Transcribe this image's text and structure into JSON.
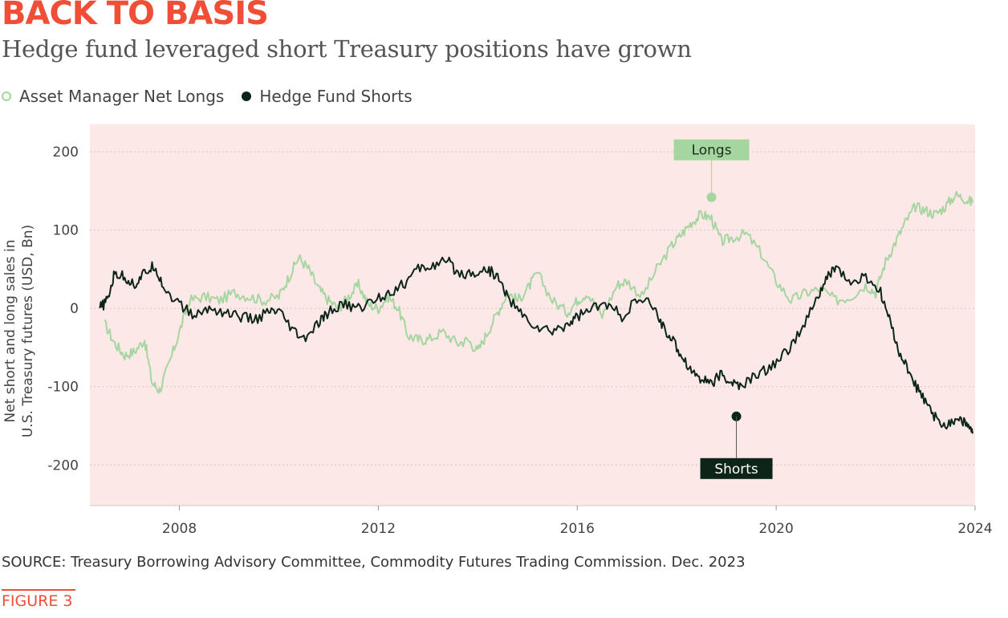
{
  "header": {
    "title": "BACK TO BASIS",
    "subtitle": "Hedge fund leveraged short Treasury positions have grown"
  },
  "footer": {
    "source": "SOURCE: Treasury Borrowing Advisory Committee, Commodity Futures Trading Commission. Dec. 2023",
    "figure_label": "FIGURE 3"
  },
  "colors": {
    "title": "#f04e37",
    "plot_background": "#fde8e8",
    "longs": "#a5d6a0",
    "shorts": "#0d2518"
  },
  "chart_data": {
    "type": "line",
    "title": "BACK TO BASIS",
    "subtitle": "Hedge fund leveraged short Treasury positions have grown",
    "ylabel": "Net short and long sales in U.S. Treasury futures (USD, Bn)",
    "xlabel": "",
    "xlim": [
      2006.2,
      2024.0
    ],
    "ylim": [
      -252,
      235
    ],
    "xticks": [
      2008,
      2012,
      2016,
      2020,
      2024
    ],
    "yticks": [
      200,
      100,
      0,
      -100,
      -200
    ],
    "xtick_labels": [
      "2008",
      "2012",
      "2016",
      "2020",
      "2024"
    ],
    "ytick_labels": [
      "200",
      "100",
      "0",
      "-100",
      "-200"
    ],
    "grid": "horizontal dotted",
    "legend_position": "top-left",
    "series": [
      {
        "name": "Asset Manager Net Longs",
        "style": "hollow-circle",
        "x": [
          2006.5,
          2006.7,
          2006.9,
          2007.1,
          2007.3,
          2007.45,
          2007.6,
          2007.8,
          2008.0,
          2008.2,
          2008.5,
          2008.8,
          2009.1,
          2009.4,
          2009.7,
          2010.0,
          2010.2,
          2010.4,
          2010.6,
          2010.8,
          2011.0,
          2011.2,
          2011.4,
          2011.6,
          2011.8,
          2012.0,
          2012.2,
          2012.4,
          2012.6,
          2012.8,
          2013.0,
          2013.3,
          2013.6,
          2013.8,
          2014.0,
          2014.2,
          2014.4,
          2014.6,
          2014.8,
          2015.0,
          2015.2,
          2015.5,
          2015.8,
          2016.0,
          2016.2,
          2016.5,
          2016.8,
          2017.0,
          2017.3,
          2017.6,
          2017.9,
          2018.1,
          2018.3,
          2018.5,
          2018.7,
          2018.9,
          2019.1,
          2019.4,
          2019.7,
          2020.0,
          2020.3,
          2020.6,
          2020.9,
          2021.2,
          2021.5,
          2021.8,
          2022.0,
          2022.2,
          2022.4,
          2022.6,
          2022.8,
          2023.0,
          2023.2,
          2023.4,
          2023.6,
          2023.8,
          2023.95
        ],
        "values": [
          -20,
          -45,
          -60,
          -55,
          -40,
          -95,
          -105,
          -70,
          -30,
          10,
          15,
          10,
          20,
          15,
          10,
          15,
          40,
          65,
          50,
          25,
          10,
          0,
          15,
          30,
          5,
          0,
          15,
          0,
          -35,
          -40,
          -40,
          -30,
          -45,
          -40,
          -55,
          -30,
          -5,
          20,
          10,
          25,
          45,
          10,
          -5,
          10,
          20,
          -10,
          30,
          35,
          15,
          50,
          80,
          95,
          110,
          120,
          115,
          85,
          90,
          95,
          70,
          35,
          10,
          20,
          25,
          10,
          15,
          30,
          20,
          60,
          85,
          110,
          130,
          125,
          120,
          130,
          145,
          140,
          135
        ]
      },
      {
        "name": "Hedge Fund Shorts",
        "style": "solid-circle",
        "x": [
          2006.4,
          2006.55,
          2006.7,
          2006.9,
          2007.1,
          2007.3,
          2007.5,
          2007.7,
          2008.0,
          2008.3,
          2008.6,
          2008.9,
          2009.2,
          2009.5,
          2009.8,
          2010.0,
          2010.3,
          2010.5,
          2010.8,
          2011.0,
          2011.3,
          2011.6,
          2011.9,
          2012.2,
          2012.5,
          2012.8,
          2013.1,
          2013.4,
          2013.6,
          2013.9,
          2014.2,
          2014.4,
          2014.6,
          2014.9,
          2015.2,
          2015.5,
          2015.8,
          2016.0,
          2016.3,
          2016.6,
          2016.9,
          2017.2,
          2017.5,
          2017.7,
          2017.9,
          2018.1,
          2018.3,
          2018.5,
          2018.7,
          2018.9,
          2019.1,
          2019.3,
          2019.6,
          2019.9,
          2020.2,
          2020.5,
          2020.8,
          2021.0,
          2021.2,
          2021.5,
          2021.8,
          2022.1,
          2022.3,
          2022.5,
          2022.7,
          2022.9,
          2023.1,
          2023.3,
          2023.5,
          2023.7,
          2023.85,
          2023.95
        ],
        "values": [
          0,
          10,
          45,
          40,
          30,
          45,
          55,
          25,
          5,
          -10,
          0,
          -5,
          -10,
          -15,
          -5,
          -5,
          -30,
          -40,
          -20,
          -5,
          5,
          0,
          10,
          20,
          30,
          50,
          55,
          60,
          45,
          45,
          50,
          40,
          15,
          -10,
          -25,
          -30,
          -20,
          -10,
          0,
          5,
          -10,
          10,
          5,
          -20,
          -40,
          -60,
          -80,
          -90,
          -95,
          -85,
          -95,
          -100,
          -85,
          -75,
          -55,
          -30,
          10,
          35,
          55,
          30,
          40,
          20,
          -20,
          -60,
          -85,
          -110,
          -130,
          -150,
          -145,
          -140,
          -150,
          -160
        ]
      }
    ],
    "annotations": [
      {
        "label": "Longs",
        "series": "Asset Manager Net Longs",
        "x": 2018.7,
        "y": 142
      },
      {
        "label": "Shorts",
        "series": "Hedge Fund Shorts",
        "x": 2019.2,
        "y": -138
      }
    ]
  }
}
